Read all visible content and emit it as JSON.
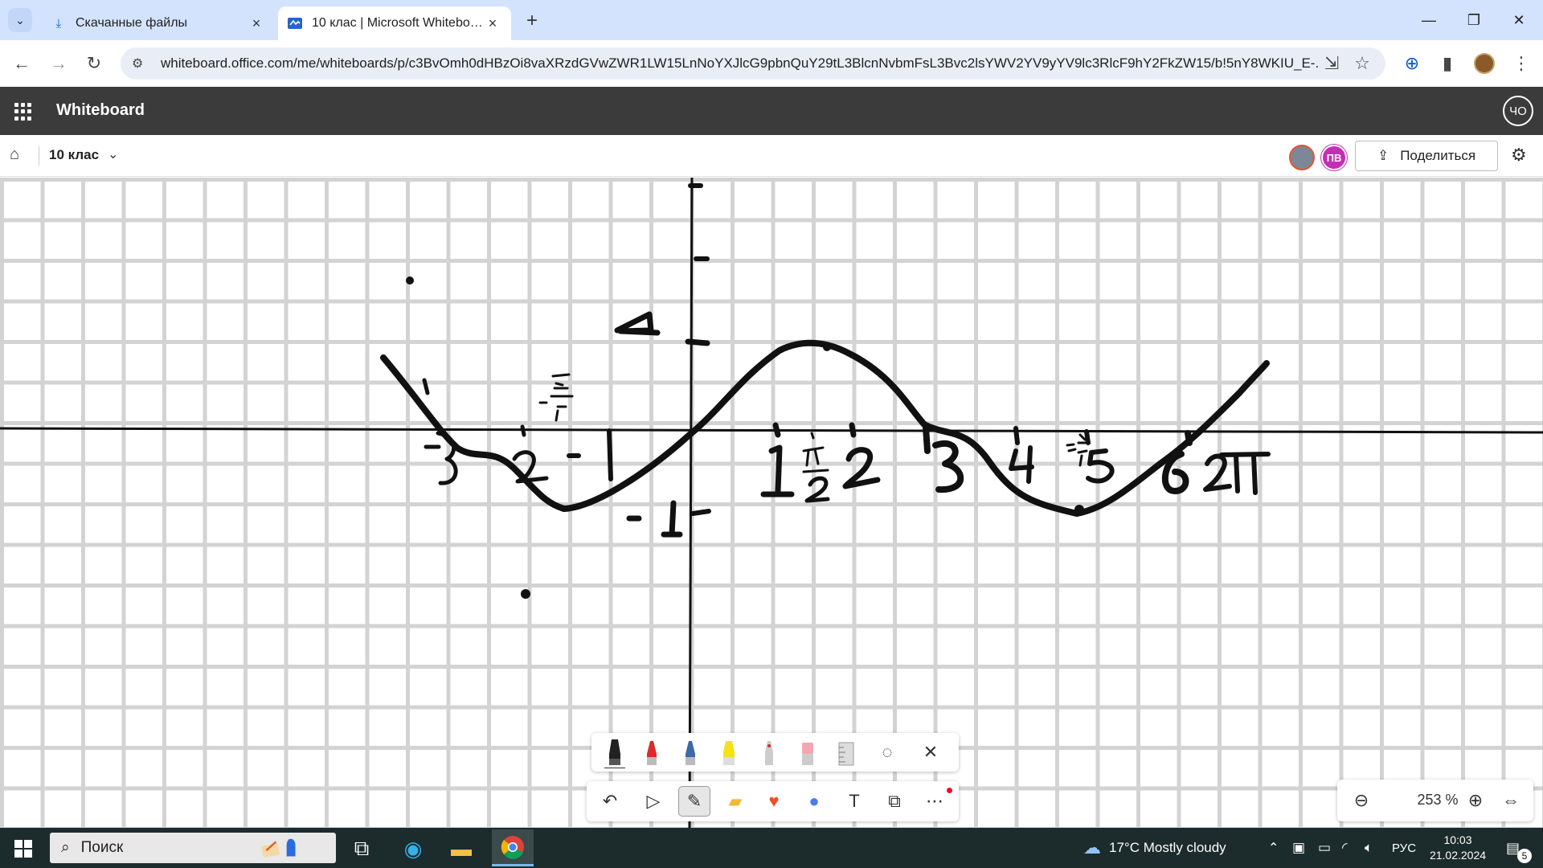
{
  "browser": {
    "tabs": [
      {
        "title": "Скачанные файлы",
        "icon": "download-icon",
        "active": false
      },
      {
        "title": "10 клас | Microsoft Whiteboard",
        "icon": "whiteboard-icon",
        "active": true
      }
    ],
    "url": "whiteboard.office.com/me/whiteboards/p/c3BvOmh0dHBzOi8vaXRzdGVwZWR1LW15LnNoYXJlcG9pbnQuY29tL3BlcnNvbmFsL3Bvc2lsYWV2YV9yYV9lc3RlcF9hY2FkZW15/b!5nY8WKIU_E-..."
  },
  "app": {
    "name": "Whiteboard",
    "user_initials": "ЧО"
  },
  "board": {
    "name": "10 клас",
    "collaborator_initials": "ПВ",
    "share_label": "Поделиться"
  },
  "zoom": {
    "level": "253 %"
  },
  "taskbar": {
    "search_placeholder": "Поиск",
    "weather": "17°C  Mostly cloudy",
    "language": "РУС",
    "time": "10:03",
    "date": "21.02.2024",
    "notifications": "5"
  },
  "colors": {
    "tabstrip": "#d3e3fd",
    "app_header": "#3b3b3b",
    "ink": "#111111",
    "collaborator": "#c42db5",
    "taskbar": "#1c2b2b"
  }
}
